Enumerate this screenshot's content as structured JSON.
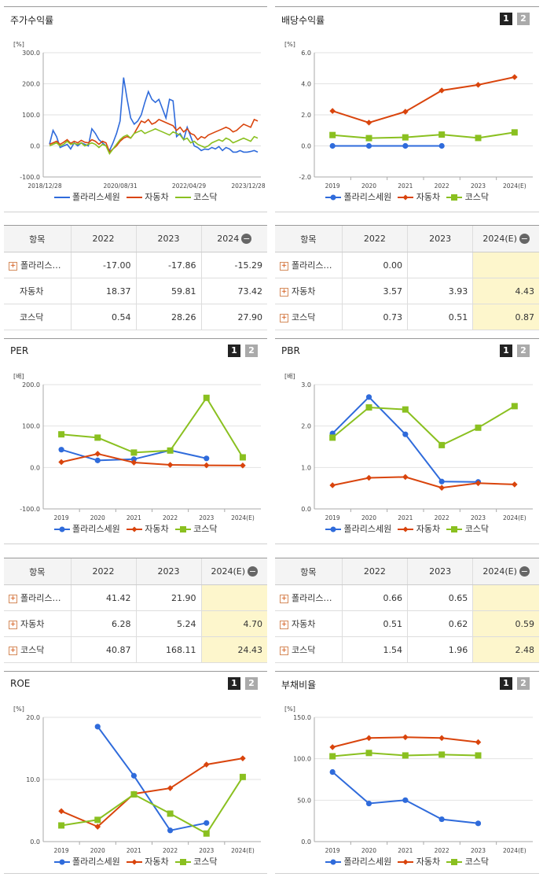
{
  "legend": [
    {
      "name": "폴라리스세원",
      "color": "#2f6bdb"
    },
    {
      "name": "자동차",
      "color": "#d9440c"
    },
    {
      "name": "코스닥",
      "color": "#8ac020"
    }
  ],
  "panels": {
    "stock": {
      "title": "주가수익률",
      "unit": "[%]"
    },
    "dividend": {
      "title": "배당수익률",
      "unit": "[%]",
      "btn1": "1",
      "btn2": "2"
    },
    "per": {
      "title": "PER",
      "unit": "[배]",
      "btn1": "1",
      "btn2": "2"
    },
    "pbr": {
      "title": "PBR",
      "unit": "[배]",
      "btn1": "1",
      "btn2": "2"
    },
    "roe": {
      "title": "ROE",
      "unit": "[%]",
      "btn1": "1",
      "btn2": "2"
    },
    "debt": {
      "title": "부채비율",
      "unit": "[%]",
      "btn1": "1",
      "btn2": "2"
    }
  },
  "tables": {
    "stock": {
      "headers": [
        "항목",
        "2022",
        "2023",
        "2024"
      ],
      "rows": [
        {
          "name": "폴라리스…",
          "plus": true,
          "values": [
            "-17.00",
            "-17.86",
            "-15.29"
          ]
        },
        {
          "name": "자동차",
          "plus": false,
          "values": [
            "18.37",
            "59.81",
            "73.42"
          ]
        },
        {
          "name": "코스닥",
          "plus": false,
          "values": [
            "0.54",
            "28.26",
            "27.90"
          ]
        }
      ]
    },
    "dividend": {
      "headers": [
        "항목",
        "2022",
        "2023",
        "2024(E)"
      ],
      "rows": [
        {
          "name": "폴라리스…",
          "plus": true,
          "values": [
            "0.00",
            "",
            ""
          ]
        },
        {
          "name": "자동차",
          "plus": true,
          "values": [
            "3.57",
            "3.93",
            "4.43"
          ]
        },
        {
          "name": "코스닥",
          "plus": true,
          "values": [
            "0.73",
            "0.51",
            "0.87"
          ]
        }
      ]
    },
    "per": {
      "headers": [
        "항목",
        "2022",
        "2023",
        "2024(E)"
      ],
      "rows": [
        {
          "name": "폴라리스…",
          "plus": true,
          "values": [
            "41.42",
            "21.90",
            ""
          ]
        },
        {
          "name": "자동차",
          "plus": true,
          "values": [
            "6.28",
            "5.24",
            "4.70"
          ]
        },
        {
          "name": "코스닥",
          "plus": true,
          "values": [
            "40.87",
            "168.11",
            "24.43"
          ]
        }
      ]
    },
    "pbr": {
      "headers": [
        "항목",
        "2022",
        "2023",
        "2024(E)"
      ],
      "rows": [
        {
          "name": "폴라리스…",
          "plus": true,
          "values": [
            "0.66",
            "0.65",
            ""
          ]
        },
        {
          "name": "자동차",
          "plus": true,
          "values": [
            "0.51",
            "0.62",
            "0.59"
          ]
        },
        {
          "name": "코스닥",
          "plus": true,
          "values": [
            "1.54",
            "1.96",
            "2.48"
          ]
        }
      ]
    }
  },
  "chart_data": [
    {
      "id": "stock",
      "type": "line",
      "title": "주가수익률",
      "ylabel": "[%]",
      "ylim": [
        -100,
        300
      ],
      "yticks": [
        "300.0",
        "200.0",
        "100.0",
        "0.0",
        "-100.0"
      ],
      "xticklabels": [
        "2018/12/28",
        "2020/08/31",
        "2022/04/29",
        "2023/12/28"
      ],
      "points": 60,
      "series": [
        {
          "name": "폴라리스세원",
          "values": [
            5,
            50,
            30,
            -5,
            0,
            5,
            -10,
            10,
            0,
            10,
            5,
            0,
            55,
            40,
            20,
            10,
            0,
            -15,
            10,
            40,
            80,
            220,
            150,
            90,
            70,
            80,
            100,
            140,
            175,
            150,
            140,
            150,
            120,
            90,
            150,
            145,
            30,
            40,
            20,
            60,
            30,
            0,
            -5,
            -15,
            -10,
            -12,
            -5,
            -10,
            -2,
            -15,
            -5,
            -10,
            -20,
            -20,
            -15,
            -20,
            -20,
            -18,
            -15,
            -20
          ]
        },
        {
          "name": "자동차",
          "values": [
            5,
            10,
            15,
            5,
            12,
            20,
            8,
            15,
            10,
            18,
            12,
            10,
            20,
            15,
            5,
            15,
            10,
            -20,
            -10,
            0,
            15,
            25,
            30,
            25,
            40,
            60,
            80,
            75,
            85,
            70,
            75,
            85,
            80,
            75,
            70,
            65,
            50,
            60,
            45,
            55,
            40,
            35,
            20,
            30,
            25,
            35,
            40,
            45,
            50,
            55,
            60,
            55,
            45,
            50,
            60,
            70,
            65,
            60,
            85,
            80
          ]
        },
        {
          "name": "코스닥",
          "values": [
            0,
            5,
            10,
            0,
            5,
            15,
            5,
            8,
            5,
            10,
            0,
            5,
            10,
            5,
            -5,
            5,
            0,
            -25,
            -10,
            5,
            20,
            30,
            35,
            25,
            40,
            45,
            50,
            40,
            45,
            50,
            55,
            50,
            45,
            40,
            35,
            45,
            40,
            35,
            20,
            25,
            10,
            15,
            5,
            0,
            -5,
            0,
            10,
            15,
            20,
            15,
            25,
            20,
            10,
            15,
            20,
            25,
            20,
            15,
            30,
            25
          ]
        }
      ]
    },
    {
      "id": "dividend",
      "type": "line",
      "title": "배당수익률",
      "ylabel": "[%]",
      "ylim": [
        -2,
        6
      ],
      "yticks": [
        "6.0",
        "4.0",
        "2.0",
        "0.0",
        "-2.0"
      ],
      "categories": [
        "2019",
        "2020",
        "2021",
        "2022",
        "2023",
        "2024(E)"
      ],
      "series": [
        {
          "name": "폴라리스세원",
          "values": [
            0,
            0,
            0,
            0,
            null,
            null
          ]
        },
        {
          "name": "자동차",
          "values": [
            2.25,
            1.5,
            2.2,
            3.57,
            3.93,
            4.43
          ]
        },
        {
          "name": "코스닥",
          "values": [
            0.7,
            0.5,
            0.55,
            0.73,
            0.51,
            0.87
          ]
        }
      ]
    },
    {
      "id": "per",
      "type": "line",
      "title": "PER",
      "ylabel": "[배]",
      "ylim": [
        -100,
        200
      ],
      "yticks": [
        "200.0",
        "100.0",
        "0.0",
        "-100.0"
      ],
      "categories": [
        "2019",
        "2020",
        "2021",
        "2022",
        "2023",
        "2024(E)"
      ],
      "series": [
        {
          "name": "폴라리스세원",
          "values": [
            43,
            17,
            20,
            41.42,
            21.9,
            null
          ]
        },
        {
          "name": "자동차",
          "values": [
            13,
            33,
            12,
            6.28,
            5.24,
            4.7
          ]
        },
        {
          "name": "코스닥",
          "values": [
            80,
            72,
            36,
            40.87,
            168.11,
            24.43
          ]
        }
      ]
    },
    {
      "id": "pbr",
      "type": "line",
      "title": "PBR",
      "ylabel": "[배]",
      "ylim": [
        0,
        3
      ],
      "yticks": [
        "3.0",
        "2.0",
        "1.0",
        "0.0"
      ],
      "categories": [
        "2019",
        "2020",
        "2021",
        "2022",
        "2023",
        "2024(E)"
      ],
      "series": [
        {
          "name": "폴라리스세원",
          "values": [
            1.82,
            2.7,
            1.8,
            0.66,
            0.65,
            null
          ]
        },
        {
          "name": "자동차",
          "values": [
            0.57,
            0.75,
            0.77,
            0.51,
            0.62,
            0.59
          ]
        },
        {
          "name": "코스닥",
          "values": [
            1.72,
            2.45,
            2.4,
            1.54,
            1.96,
            2.48
          ]
        }
      ]
    },
    {
      "id": "roe",
      "type": "line",
      "title": "ROE",
      "ylabel": "[%]",
      "ylim": [
        0,
        20
      ],
      "yticks": [
        "20.0",
        "10.0",
        "0.0"
      ],
      "categories": [
        "2019",
        "2020",
        "2021",
        "2022",
        "2023",
        "2024(E)"
      ],
      "series": [
        {
          "name": "폴라리스세원",
          "values": [
            null,
            18.5,
            10.6,
            1.8,
            3,
            null
          ]
        },
        {
          "name": "자동차",
          "values": [
            4.9,
            2.4,
            7.7,
            8.6,
            12.4,
            13.4
          ]
        },
        {
          "name": "코스닥",
          "values": [
            2.6,
            3.5,
            7.6,
            4.5,
            1.3,
            10.4
          ]
        }
      ]
    },
    {
      "id": "debt",
      "type": "line",
      "title": "부채비율",
      "ylabel": "[%]",
      "ylim": [
        0,
        150
      ],
      "yticks": [
        "150.0",
        "100.0",
        "50.0",
        "0.0"
      ],
      "categories": [
        "2019",
        "2020",
        "2021",
        "2022",
        "2023",
        "2024(E)"
      ],
      "series": [
        {
          "name": "폴라리스세원",
          "values": [
            84,
            46,
            50,
            27,
            22,
            null
          ]
        },
        {
          "name": "자동차",
          "values": [
            114,
            125,
            126,
            125,
            120,
            null
          ]
        },
        {
          "name": "코스닥",
          "values": [
            103,
            107,
            104,
            105,
            104,
            null
          ]
        }
      ]
    }
  ]
}
